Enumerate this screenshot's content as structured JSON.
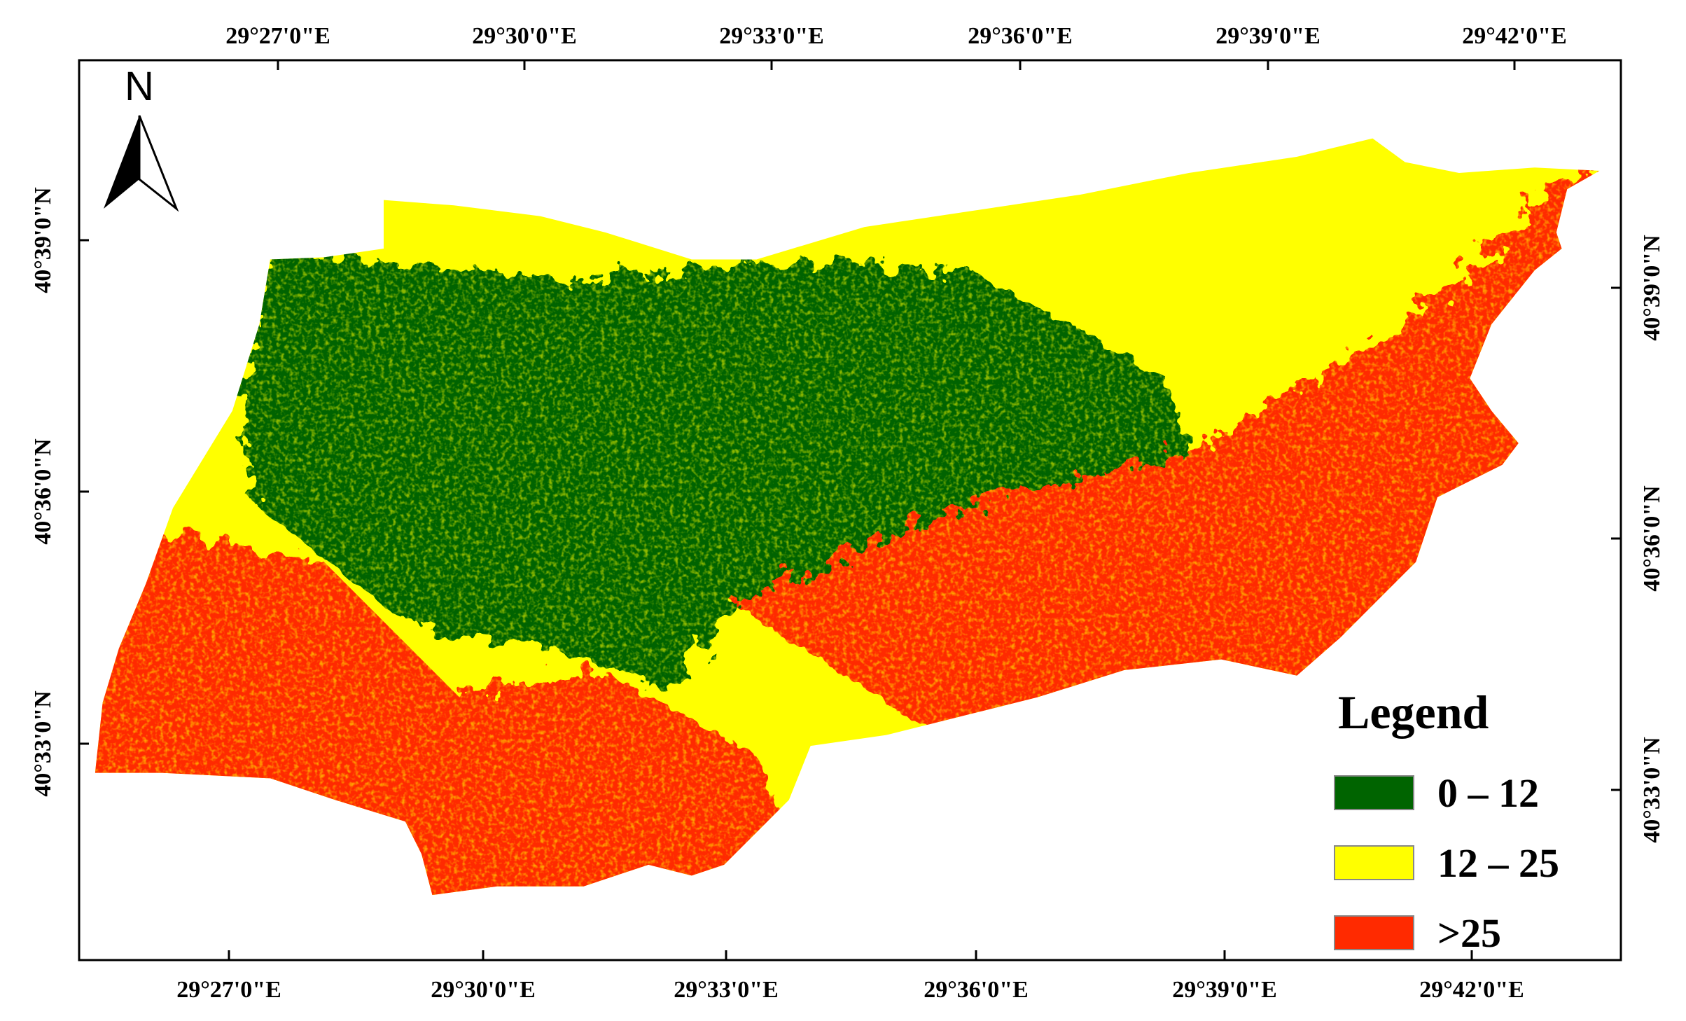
{
  "north_label": "N",
  "top_labels": [
    "29°27'0\"E",
    "29°30'0\"E",
    "29°33'0\"E",
    "29°36'0\"E",
    "29°39'0\"E",
    "29°42'0\"E"
  ],
  "bottom_labels": [
    "29°27'0\"E",
    "29°30'0\"E",
    "29°33'0\"E",
    "29°36'0\"E",
    "29°39'0\"E",
    "29°42'0\"E"
  ],
  "left_labels": [
    "40°39'0\"N",
    "40°36'0\"N",
    "40°33'0\"N"
  ],
  "right_labels": [
    "40°39'0\"N",
    "40°36'0\"N",
    "40°33'0\"N"
  ],
  "legend": {
    "title": "Legend",
    "items": [
      {
        "label": "0 – 12",
        "color": "#006400"
      },
      {
        "label": "12 – 25",
        "color": "#ffff00"
      },
      {
        "label": ">25",
        "color": "#ff2a00"
      }
    ]
  }
}
